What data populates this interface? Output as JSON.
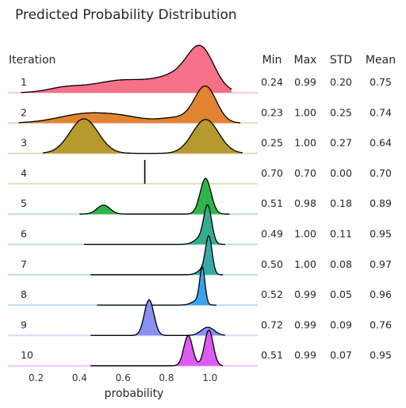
{
  "chart_data": {
    "type": "ridgeline",
    "title": "Predicted Probability Distribution",
    "xlabel": "probability",
    "row_header": "Iteration",
    "stat_headers": [
      "Min",
      "Max",
      "STD",
      "Mean"
    ],
    "xlim": [
      0.07,
      1.22
    ],
    "x_ticks": [
      {
        "value": 0.2,
        "label": "0.2"
      },
      {
        "value": 0.4,
        "label": "0.4"
      },
      {
        "value": 0.6,
        "label": "0.6"
      },
      {
        "value": 0.8,
        "label": "0.8"
      },
      {
        "value": 1.0,
        "label": "1.0"
      }
    ],
    "grid": false,
    "series": [
      {
        "name": "1",
        "color": "#f77189",
        "range": [
          0.13,
          1.1
        ],
        "peaks": [
          {
            "mu": 0.96,
            "sigma": 0.06,
            "h": 1.0
          },
          {
            "mu": 0.87,
            "sigma": 0.1,
            "h": 0.45
          },
          {
            "mu": 0.6,
            "sigma": 0.14,
            "h": 0.35
          },
          {
            "mu": 0.33,
            "sigma": 0.08,
            "h": 0.12
          }
        ],
        "stats": [
          "0.24",
          "0.99",
          "0.20",
          "0.75"
        ]
      },
      {
        "name": "2",
        "color": "#e18432",
        "range": [
          0.12,
          1.14
        ],
        "peaks": [
          {
            "mu": 0.98,
            "sigma": 0.05,
            "h": 1.0
          },
          {
            "mu": 0.85,
            "sigma": 0.08,
            "h": 0.15
          },
          {
            "mu": 0.44,
            "sigma": 0.13,
            "h": 0.27
          },
          {
            "mu": 0.62,
            "sigma": 0.09,
            "h": 0.1
          }
        ],
        "stats": [
          "0.23",
          "1.00",
          "0.25",
          "0.74"
        ]
      },
      {
        "name": "3",
        "color": "#b69a30",
        "range": [
          0.23,
          1.15
        ],
        "peaks": [
          {
            "mu": 0.42,
            "sigma": 0.065,
            "h": 0.97
          },
          {
            "mu": 0.98,
            "sigma": 0.06,
            "h": 0.95
          }
        ],
        "stats": [
          "0.25",
          "1.00",
          "0.27",
          "0.64"
        ]
      },
      {
        "name": "4",
        "color": "#9bad31",
        "range": [
          0.7,
          0.7
        ],
        "spike": 0.7,
        "peaks": [],
        "stats": [
          "0.70",
          "0.70",
          "0.00",
          "0.70"
        ]
      },
      {
        "name": "5",
        "color": "#2eb44c",
        "range": [
          0.4,
          1.09
        ],
        "peaks": [
          {
            "mu": 0.98,
            "sigma": 0.025,
            "h": 1.0
          },
          {
            "mu": 0.51,
            "sigma": 0.03,
            "h": 0.25
          }
        ],
        "stats": [
          "0.51",
          "0.98",
          "0.18",
          "0.89"
        ]
      },
      {
        "name": "6",
        "color": "#35ad8c",
        "range": [
          0.42,
          1.07
        ],
        "peaks": [
          {
            "mu": 0.99,
            "sigma": 0.018,
            "h": 1.0
          },
          {
            "mu": 0.96,
            "sigma": 0.03,
            "h": 0.18
          }
        ],
        "stats": [
          "0.49",
          "1.00",
          "0.11",
          "0.95"
        ]
      },
      {
        "name": "7",
        "color": "#38a9a7",
        "range": [
          0.45,
          1.06
        ],
        "peaks": [
          {
            "mu": 0.995,
            "sigma": 0.015,
            "h": 1.0
          },
          {
            "mu": 0.97,
            "sigma": 0.025,
            "h": 0.15
          }
        ],
        "stats": [
          "0.50",
          "1.00",
          "0.08",
          "0.97"
        ]
      },
      {
        "name": "8",
        "color": "#3ba3ec",
        "range": [
          0.48,
          1.03
        ],
        "peaks": [
          {
            "mu": 0.965,
            "sigma": 0.012,
            "h": 1.0
          },
          {
            "mu": 0.94,
            "sigma": 0.025,
            "h": 0.12
          }
        ],
        "stats": [
          "0.52",
          "0.99",
          "0.05",
          "0.96"
        ]
      },
      {
        "name": "9",
        "color": "#8a8ff3",
        "range": [
          0.45,
          1.07
        ],
        "peaks": [
          {
            "mu": 0.72,
            "sigma": 0.022,
            "h": 1.0
          },
          {
            "mu": 0.99,
            "sigma": 0.03,
            "h": 0.23
          }
        ],
        "stats": [
          "0.72",
          "0.99",
          "0.09",
          "0.76"
        ]
      },
      {
        "name": "10",
        "color": "#dc5cf0",
        "range": [
          0.45,
          1.06
        ],
        "peaks": [
          {
            "mu": 0.9,
            "sigma": 0.02,
            "h": 0.85
          },
          {
            "mu": 0.995,
            "sigma": 0.02,
            "h": 1.0
          }
        ],
        "stats": [
          "0.51",
          "0.99",
          "0.07",
          "0.95"
        ]
      }
    ]
  }
}
